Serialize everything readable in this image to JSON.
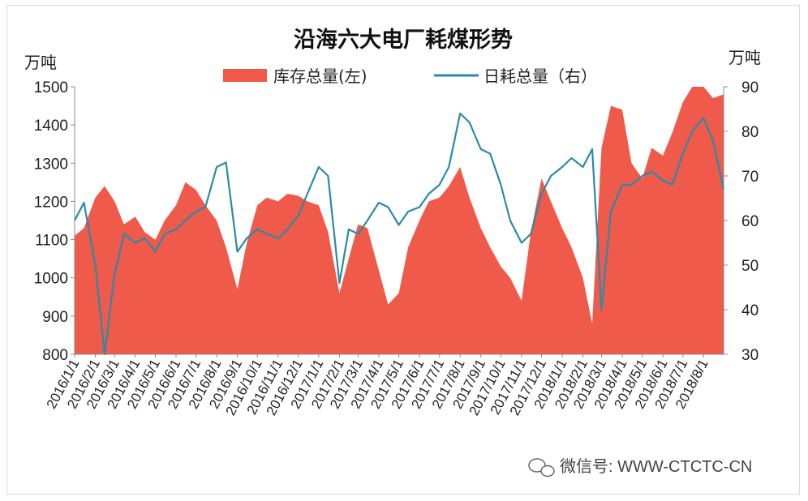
{
  "chart_data": {
    "type": "area",
    "title": "沿海六大电厂耗煤形势",
    "y_left_unit": "万吨",
    "y_right_unit": "万吨",
    "y_left_ticks": [
      "1500",
      "1400",
      "1300",
      "1200",
      "1100",
      "1000",
      "900",
      "800"
    ],
    "y_right_ticks": [
      "90",
      "80",
      "70",
      "60",
      "50",
      "40",
      "30"
    ],
    "ylim_left": [
      800,
      1500
    ],
    "ylim_right": [
      30,
      90
    ],
    "grid": false,
    "legend_position": "top",
    "x_start": "2016-01-01",
    "x_end": "2018-08-31",
    "x_ticks": [
      "2016/1/1",
      "2016/2/1",
      "2016/3/1",
      "2016/4/1",
      "2016/5/1",
      "2016/6/1",
      "2016/7/1",
      "2016/8/1",
      "2016/9/1",
      "2016/10/1",
      "2016/11/1",
      "2016/12/1",
      "2017/1/1",
      "2017/2/1",
      "2017/3/1",
      "2017/4/1",
      "2017/5/1",
      "2017/6/1",
      "2017/7/1",
      "2017/8/1",
      "2017/9/1",
      "2017/10/1",
      "2017/11/1",
      "2017/12/1",
      "2018/1/1",
      "2018/2/1",
      "2018/3/1",
      "2018/4/1",
      "2018/5/1",
      "2018/6/1",
      "2018/7/1",
      "2018/8/1"
    ],
    "series": [
      {
        "name": "库存总量(左)",
        "axis": "left",
        "kind": "area",
        "color": "#f05a4a",
        "points": [
          [
            "2016-01-01",
            1110
          ],
          [
            "2016-01-15",
            1130
          ],
          [
            "2016-02-01",
            1210
          ],
          [
            "2016-02-15",
            1240
          ],
          [
            "2016-03-01",
            1200
          ],
          [
            "2016-03-15",
            1140
          ],
          [
            "2016-04-01",
            1160
          ],
          [
            "2016-04-15",
            1120
          ],
          [
            "2016-05-01",
            1100
          ],
          [
            "2016-05-15",
            1150
          ],
          [
            "2016-06-01",
            1190
          ],
          [
            "2016-06-15",
            1250
          ],
          [
            "2016-07-01",
            1230
          ],
          [
            "2016-07-15",
            1190
          ],
          [
            "2016-08-01",
            1150
          ],
          [
            "2016-08-15",
            1080
          ],
          [
            "2016-09-01",
            970
          ],
          [
            "2016-09-15",
            1090
          ],
          [
            "2016-10-01",
            1190
          ],
          [
            "2016-10-15",
            1210
          ],
          [
            "2016-11-01",
            1200
          ],
          [
            "2016-11-15",
            1220
          ],
          [
            "2016-12-01",
            1215
          ],
          [
            "2016-12-15",
            1200
          ],
          [
            "2017-01-01",
            1190
          ],
          [
            "2017-01-15",
            1120
          ],
          [
            "2017-02-01",
            960
          ],
          [
            "2017-02-15",
            1050
          ],
          [
            "2017-03-01",
            1140
          ],
          [
            "2017-03-15",
            1130
          ],
          [
            "2017-04-01",
            1020
          ],
          [
            "2017-04-15",
            930
          ],
          [
            "2017-05-01",
            960
          ],
          [
            "2017-05-15",
            1080
          ],
          [
            "2017-06-01",
            1150
          ],
          [
            "2017-06-15",
            1200
          ],
          [
            "2017-07-01",
            1210
          ],
          [
            "2017-07-15",
            1240
          ],
          [
            "2017-08-01",
            1290
          ],
          [
            "2017-08-15",
            1210
          ],
          [
            "2017-09-01",
            1130
          ],
          [
            "2017-09-15",
            1080
          ],
          [
            "2017-10-01",
            1030
          ],
          [
            "2017-10-15",
            1000
          ],
          [
            "2017-11-01",
            940
          ],
          [
            "2017-11-15",
            1120
          ],
          [
            "2017-12-01",
            1260
          ],
          [
            "2017-12-15",
            1200
          ],
          [
            "2018-01-01",
            1130
          ],
          [
            "2018-01-15",
            1080
          ],
          [
            "2018-02-01",
            1000
          ],
          [
            "2018-02-15",
            880
          ],
          [
            "2018-03-01",
            1340
          ],
          [
            "2018-03-15",
            1450
          ],
          [
            "2018-04-01",
            1440
          ],
          [
            "2018-04-15",
            1300
          ],
          [
            "2018-05-01",
            1260
          ],
          [
            "2018-05-15",
            1340
          ],
          [
            "2018-06-01",
            1320
          ],
          [
            "2018-06-15",
            1380
          ],
          [
            "2018-07-01",
            1460
          ],
          [
            "2018-07-15",
            1500
          ],
          [
            "2018-08-01",
            1500
          ],
          [
            "2018-08-15",
            1470
          ],
          [
            "2018-08-31",
            1480
          ]
        ]
      },
      {
        "name": "日耗总量（右）",
        "axis": "right",
        "kind": "line",
        "color": "#2b8aa8",
        "points": [
          [
            "2016-01-01",
            60
          ],
          [
            "2016-01-15",
            64
          ],
          [
            "2016-02-01",
            50
          ],
          [
            "2016-02-15",
            30
          ],
          [
            "2016-03-01",
            48
          ],
          [
            "2016-03-15",
            57
          ],
          [
            "2016-04-01",
            55
          ],
          [
            "2016-04-15",
            56
          ],
          [
            "2016-05-01",
            53
          ],
          [
            "2016-05-15",
            57
          ],
          [
            "2016-06-01",
            58
          ],
          [
            "2016-06-15",
            60
          ],
          [
            "2016-07-01",
            62
          ],
          [
            "2016-07-15",
            63
          ],
          [
            "2016-08-01",
            72
          ],
          [
            "2016-08-15",
            73
          ],
          [
            "2016-09-01",
            53
          ],
          [
            "2016-09-15",
            56
          ],
          [
            "2016-10-01",
            58
          ],
          [
            "2016-10-15",
            57
          ],
          [
            "2016-11-01",
            56
          ],
          [
            "2016-11-15",
            58
          ],
          [
            "2016-12-01",
            61
          ],
          [
            "2016-12-15",
            66
          ],
          [
            "2017-01-01",
            72
          ],
          [
            "2017-01-15",
            70
          ],
          [
            "2017-02-01",
            46
          ],
          [
            "2017-02-15",
            58
          ],
          [
            "2017-03-01",
            57
          ],
          [
            "2017-03-15",
            60
          ],
          [
            "2017-04-01",
            64
          ],
          [
            "2017-04-15",
            63
          ],
          [
            "2017-05-01",
            59
          ],
          [
            "2017-05-15",
            62
          ],
          [
            "2017-06-01",
            63
          ],
          [
            "2017-06-15",
            66
          ],
          [
            "2017-07-01",
            68
          ],
          [
            "2017-07-15",
            72
          ],
          [
            "2017-08-01",
            84
          ],
          [
            "2017-08-15",
            82
          ],
          [
            "2017-09-01",
            76
          ],
          [
            "2017-09-15",
            75
          ],
          [
            "2017-10-01",
            68
          ],
          [
            "2017-10-15",
            60
          ],
          [
            "2017-11-01",
            55
          ],
          [
            "2017-11-15",
            57
          ],
          [
            "2017-12-01",
            66
          ],
          [
            "2017-12-15",
            70
          ],
          [
            "2018-01-01",
            72
          ],
          [
            "2018-01-15",
            74
          ],
          [
            "2018-02-01",
            72
          ],
          [
            "2018-02-15",
            76
          ],
          [
            "2018-03-01",
            40
          ],
          [
            "2018-03-15",
            62
          ],
          [
            "2018-04-01",
            68
          ],
          [
            "2018-04-15",
            68
          ],
          [
            "2018-05-01",
            70
          ],
          [
            "2018-05-15",
            71
          ],
          [
            "2018-06-01",
            69
          ],
          [
            "2018-06-15",
            68
          ],
          [
            "2018-07-01",
            75
          ],
          [
            "2018-07-15",
            80
          ],
          [
            "2018-08-01",
            83
          ],
          [
            "2018-08-15",
            78
          ],
          [
            "2018-08-31",
            67
          ]
        ]
      }
    ]
  },
  "watermark": "微信号: WWW-CTCTC-CN",
  "wechat_icon_name": "wechat-icon"
}
